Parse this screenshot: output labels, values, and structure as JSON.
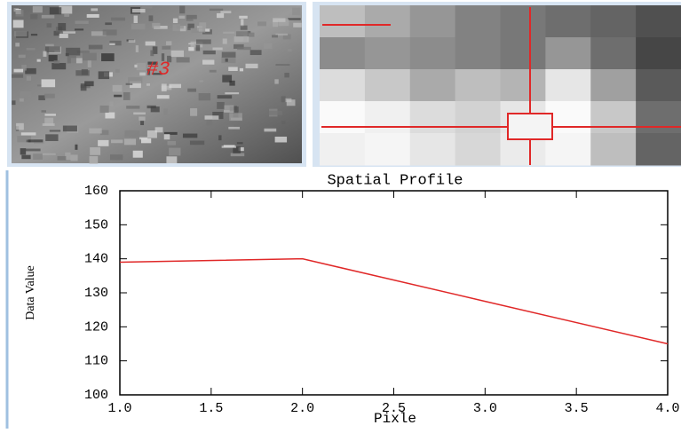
{
  "overview_label": "#3",
  "chart_data": {
    "type": "line",
    "title": "Spatial Profile",
    "x_label": "Pixle",
    "y_label": "Data Value",
    "x": [
      1,
      2,
      3,
      4
    ],
    "values": [
      139,
      140,
      127.5,
      115
    ],
    "color": "#e02828",
    "xlim": [
      1.0,
      4.0
    ],
    "xticks": [
      {
        "value": 1.0,
        "label": "1.0"
      },
      {
        "value": 1.5,
        "label": "1.5"
      },
      {
        "value": 2.0,
        "label": "2.0"
      },
      {
        "value": 2.5,
        "label": "2.5"
      },
      {
        "value": 3.0,
        "label": "3.0"
      },
      {
        "value": 3.5,
        "label": "3.5"
      },
      {
        "value": 4.0,
        "label": "4.0"
      }
    ],
    "ylim": [
      100,
      160
    ],
    "yticks": [
      100,
      110,
      120,
      130,
      140,
      150,
      160
    ]
  }
}
